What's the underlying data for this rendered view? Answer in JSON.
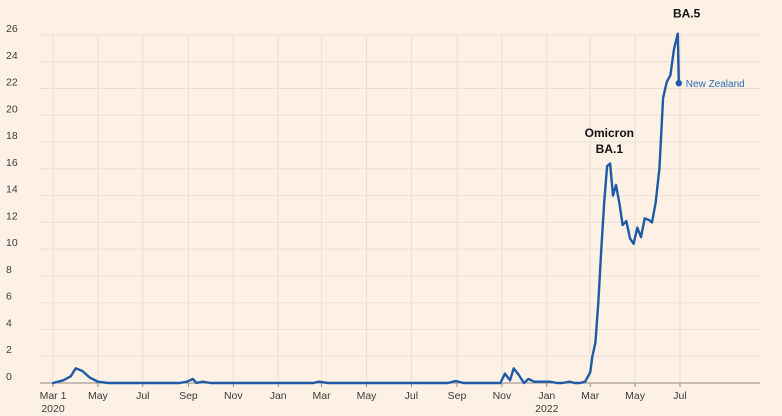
{
  "chart_data": {
    "type": "line",
    "title": "",
    "xlabel": "",
    "ylabel": "",
    "ylim": [
      0,
      26
    ],
    "yticks": [
      0,
      2,
      4,
      6,
      8,
      10,
      12,
      14,
      16,
      18,
      20,
      22,
      24,
      26
    ],
    "grid": true,
    "colors": {
      "background": "#fdf1e6",
      "line": "#1f5aa6",
      "grid": "#e9dfd6",
      "label": "#2c6cb0"
    },
    "xticks": [
      {
        "date": "2020-03-01",
        "label": "Mar 1",
        "sublabel": "2020"
      },
      {
        "date": "2020-05-01",
        "label": "May",
        "sublabel": ""
      },
      {
        "date": "2020-07-01",
        "label": "Jul",
        "sublabel": ""
      },
      {
        "date": "2020-09-01",
        "label": "Sep",
        "sublabel": ""
      },
      {
        "date": "2020-11-01",
        "label": "Nov",
        "sublabel": ""
      },
      {
        "date": "2021-01-01",
        "label": "Jan",
        "sublabel": ""
      },
      {
        "date": "2021-03-01",
        "label": "Mar",
        "sublabel": ""
      },
      {
        "date": "2021-05-01",
        "label": "May",
        "sublabel": ""
      },
      {
        "date": "2021-07-01",
        "label": "Jul",
        "sublabel": ""
      },
      {
        "date": "2021-09-01",
        "label": "Sep",
        "sublabel": ""
      },
      {
        "date": "2021-11-01",
        "label": "Nov",
        "sublabel": ""
      },
      {
        "date": "2022-01-01",
        "label": "Jan",
        "sublabel": "2022"
      },
      {
        "date": "2022-03-01",
        "label": "Mar",
        "sublabel": ""
      },
      {
        "date": "2022-05-01",
        "label": "May",
        "sublabel": ""
      },
      {
        "date": "2022-07-01",
        "label": "Jul",
        "sublabel": ""
      }
    ],
    "series": [
      {
        "name": "New Zealand",
        "x": [
          "2020-03-01",
          "2020-03-15",
          "2020-03-25",
          "2020-04-01",
          "2020-04-10",
          "2020-04-20",
          "2020-05-01",
          "2020-05-15",
          "2020-06-01",
          "2020-08-01",
          "2020-08-20",
          "2020-08-30",
          "2020-09-07",
          "2020-09-12",
          "2020-09-20",
          "2020-10-01",
          "2021-02-10",
          "2021-02-18",
          "2021-02-25",
          "2021-03-10",
          "2021-08-01",
          "2021-08-20",
          "2021-08-30",
          "2021-09-10",
          "2021-09-20",
          "2021-10-01",
          "2021-10-20",
          "2021-10-30",
          "2021-11-05",
          "2021-11-12",
          "2021-11-17",
          "2021-11-24",
          "2021-12-01",
          "2021-12-07",
          "2021-12-15",
          "2021-12-25",
          "2022-01-05",
          "2022-01-15",
          "2022-01-22",
          "2022-02-01",
          "2022-02-08",
          "2022-02-15",
          "2022-02-22",
          "2022-03-01",
          "2022-03-04",
          "2022-03-08",
          "2022-03-12",
          "2022-03-16",
          "2022-03-20",
          "2022-03-24",
          "2022-03-28",
          "2022-04-01",
          "2022-04-05",
          "2022-04-10",
          "2022-04-14",
          "2022-04-19",
          "2022-04-24",
          "2022-04-29",
          "2022-05-04",
          "2022-05-09",
          "2022-05-14",
          "2022-05-19",
          "2022-05-24",
          "2022-05-29",
          "2022-06-03",
          "2022-06-08",
          "2022-06-13",
          "2022-06-18",
          "2022-06-23",
          "2022-06-28",
          "2022-07-03",
          "2022-07-08",
          "2022-07-13",
          "2022-07-18",
          "2022-07-22"
        ],
        "values": [
          0,
          0.2,
          0.5,
          1.1,
          0.9,
          0.4,
          0.1,
          0,
          0,
          0,
          0,
          0.1,
          0.3,
          0,
          0.1,
          0,
          0,
          0,
          0.1,
          0,
          0,
          0,
          0.15,
          0,
          0,
          0,
          0,
          0,
          0.7,
          0.2,
          1.1,
          0.6,
          0,
          0.3,
          0.1,
          0.1,
          0.1,
          0,
          0,
          0.1,
          0,
          0,
          0.1,
          0.8,
          2,
          3,
          6,
          10,
          13.5,
          16.2,
          16.4,
          14,
          14.8,
          13.3,
          11.8,
          12.1,
          10.8,
          10.4,
          11.6,
          10.9,
          12.3,
          12.2,
          12,
          13.5,
          16,
          21.3,
          22.5,
          23,
          25,
          26.1,
          22.4,
          22.4,
          22.4,
          22.4,
          22.4
        ],
        "end_value": 22.4
      }
    ],
    "series_label": "New Zealand",
    "annotations": [
      {
        "lines": [
          "Omicron",
          "BA.1"
        ],
        "date": "2022-03-27",
        "value": 17.2
      },
      {
        "lines": [
          "BA.5"
        ],
        "date": "2022-07-10",
        "value": 27.3
      }
    ]
  }
}
